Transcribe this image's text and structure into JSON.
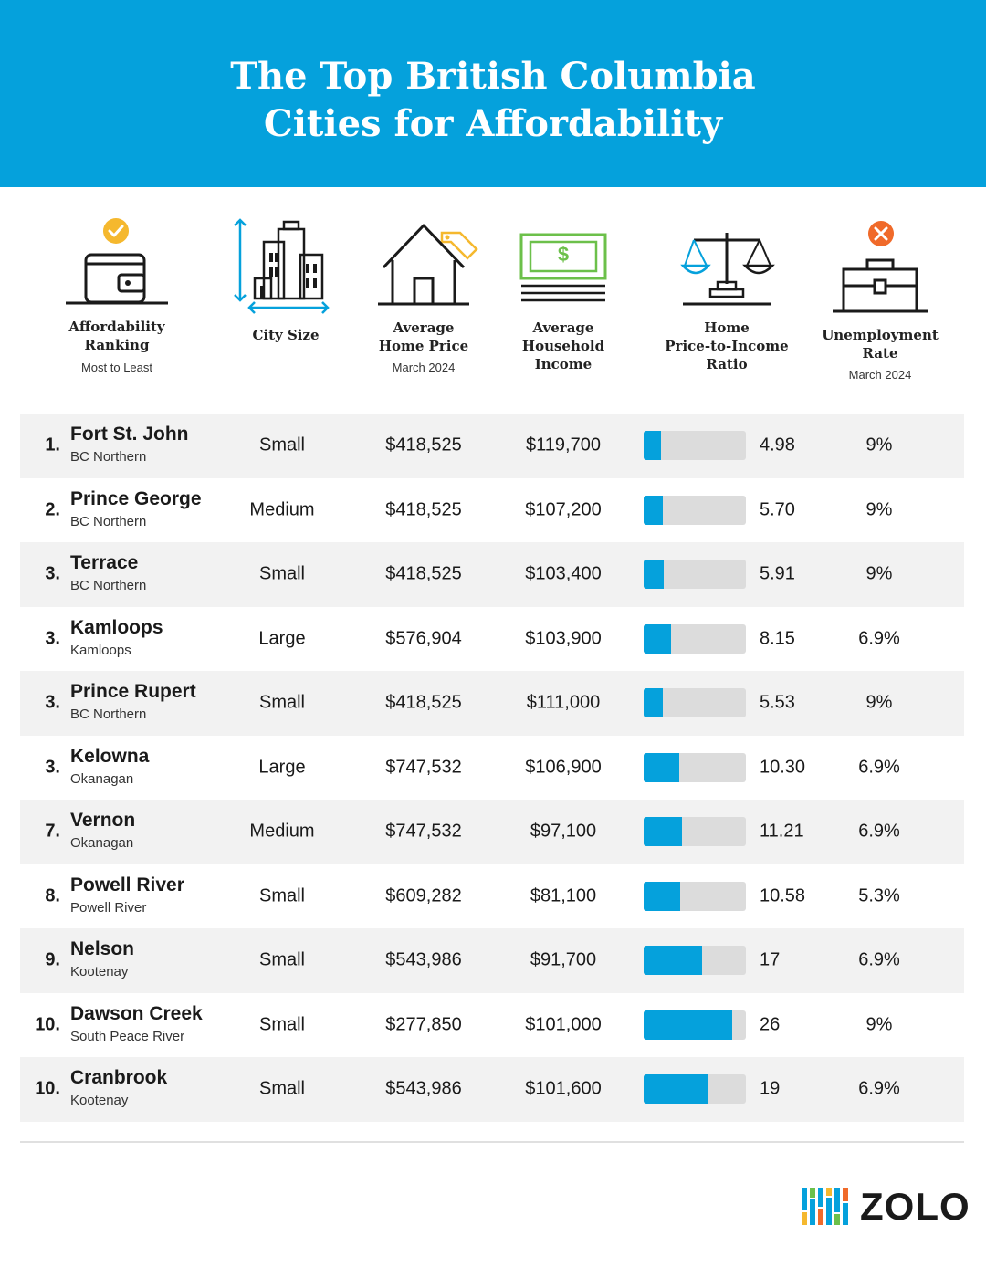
{
  "header": {
    "title_line1": "The Top British Columbia",
    "title_line2": "Cities for Affordability"
  },
  "columns": {
    "ranking": {
      "label1": "Affordability",
      "label2": "Ranking",
      "sub": "Most to Least",
      "icon": "wallet-icon",
      "badge": "checkmark-icon"
    },
    "size": {
      "label1": "City Size",
      "icon": "buildings-icon"
    },
    "price": {
      "label1": "Average",
      "label2": "Home Price",
      "sub": "March 2024",
      "icon": "house-price-tag-icon"
    },
    "income": {
      "label1": "Average",
      "label2": "Household",
      "label3": "Income",
      "icon": "cash-stack-icon",
      "dollar": "$"
    },
    "ratio": {
      "label1": "Home",
      "label2": "Price-to-Income",
      "label3": "Ratio",
      "icon": "scales-icon"
    },
    "unemployment": {
      "label1": "Unemployment",
      "label2": "Rate",
      "sub": "March 2024",
      "icon": "briefcase-icon",
      "badge": "x-icon"
    }
  },
  "colors": {
    "brand_blue": "#05a1dc",
    "check_yellow": "#f5b82e",
    "x_orange": "#f06a2a",
    "money_green": "#6cc04a",
    "bar_track": "#dcdcdc"
  },
  "chart_data": {
    "type": "table",
    "bar_max": 30,
    "rows": [
      {
        "rank": "1.",
        "city": "Fort St. John",
        "region": "BC Northern",
        "size": "Small",
        "price": "$418,525",
        "income": "$119,700",
        "ratio": 4.98,
        "ratio_label": "4.98",
        "unemployment": "9%"
      },
      {
        "rank": "2.",
        "city": "Prince George",
        "region": "BC Northern",
        "size": "Medium",
        "price": "$418,525",
        "income": "$107,200",
        "ratio": 5.7,
        "ratio_label": "5.70",
        "unemployment": "9%"
      },
      {
        "rank": "3.",
        "city": "Terrace",
        "region": "BC Northern",
        "size": "Small",
        "price": "$418,525",
        "income": "$103,400",
        "ratio": 5.91,
        "ratio_label": "5.91",
        "unemployment": "9%"
      },
      {
        "rank": "3.",
        "city": "Kamloops",
        "region": "Kamloops",
        "size": "Large",
        "price": "$576,904",
        "income": "$103,900",
        "ratio": 8.15,
        "ratio_label": "8.15",
        "unemployment": "6.9%"
      },
      {
        "rank": "3.",
        "city": "Prince Rupert",
        "region": "BC Northern",
        "size": "Small",
        "price": "$418,525",
        "income": "$111,000",
        "ratio": 5.53,
        "ratio_label": "5.53",
        "unemployment": "9%"
      },
      {
        "rank": "3.",
        "city": "Kelowna",
        "region": "Okanagan",
        "size": "Large",
        "price": "$747,532",
        "income": "$106,900",
        "ratio": 10.3,
        "ratio_label": "10.30",
        "unemployment": "6.9%"
      },
      {
        "rank": "7.",
        "city": "Vernon",
        "region": "Okanagan",
        "size": "Medium",
        "price": "$747,532",
        "income": "$97,100",
        "ratio": 11.21,
        "ratio_label": "11.21",
        "unemployment": "6.9%"
      },
      {
        "rank": "8.",
        "city": "Powell River",
        "region": "Powell River",
        "size": "Small",
        "price": "$609,282",
        "income": "$81,100",
        "ratio": 10.58,
        "ratio_label": "10.58",
        "unemployment": "5.3%"
      },
      {
        "rank": "9.",
        "city": "Nelson",
        "region": "Kootenay",
        "size": "Small",
        "price": "$543,986",
        "income": "$91,700",
        "ratio": 17,
        "ratio_label": "17",
        "unemployment": "6.9%"
      },
      {
        "rank": "10.",
        "city": "Dawson Creek",
        "region": "South Peace River",
        "size": "Small",
        "price": "$277,850",
        "income": "$101,000",
        "ratio": 26,
        "ratio_label": "26",
        "unemployment": "9%"
      },
      {
        "rank": "10.",
        "city": "Cranbrook",
        "region": "Kootenay",
        "size": "Small",
        "price": "$543,986",
        "income": "$101,600",
        "ratio": 19,
        "ratio_label": "19",
        "unemployment": "6.9%"
      }
    ]
  },
  "footer": {
    "brand": "ZOLO",
    "logo_icon": "zolo-bars-icon"
  }
}
